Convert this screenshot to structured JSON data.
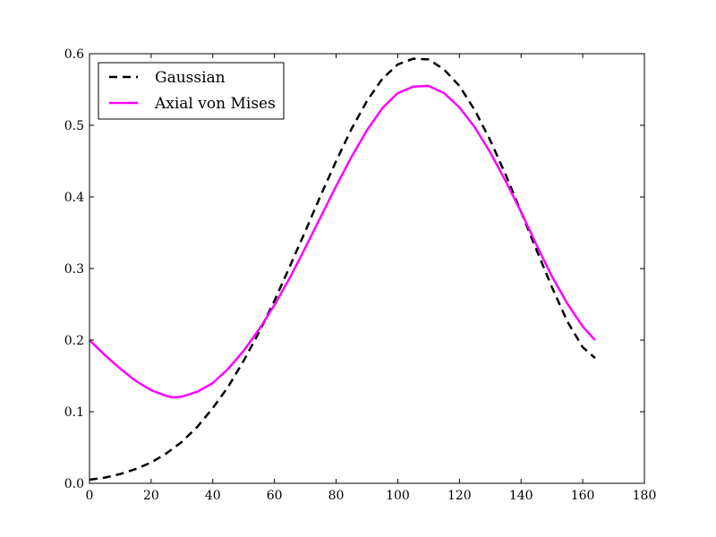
{
  "chart_data": {
    "type": "line",
    "title": "",
    "xlabel": "",
    "ylabel": "",
    "xlim": [
      0,
      180
    ],
    "ylim": [
      0.0,
      0.6
    ],
    "xticks": [
      0,
      20,
      40,
      60,
      80,
      100,
      120,
      140,
      160,
      180
    ],
    "xtick_labels": [
      "0",
      "20",
      "40",
      "60",
      "80",
      "100",
      "120",
      "140",
      "160",
      "180"
    ],
    "yticks": [
      0.0,
      0.1,
      0.2,
      0.3,
      0.4,
      0.5,
      0.6
    ],
    "ytick_labels": [
      "0.0",
      "0.1",
      "0.2",
      "0.3",
      "0.4",
      "0.5",
      "0.6"
    ],
    "grid": false,
    "legend_position": "top-left",
    "series": [
      {
        "name": "Gaussian",
        "color": "#000000",
        "line_style": "dashed",
        "x": [
          0,
          5,
          10,
          15,
          20,
          25,
          30,
          35,
          40,
          45,
          50,
          55,
          60,
          65,
          70,
          75,
          80,
          85,
          90,
          95,
          100,
          105,
          110,
          115,
          120,
          125,
          130,
          135,
          140,
          145,
          150,
          155,
          160,
          164
        ],
        "y": [
          0.005,
          0.008,
          0.013,
          0.02,
          0.029,
          0.042,
          0.058,
          0.079,
          0.105,
          0.135,
          0.171,
          0.211,
          0.255,
          0.303,
          0.352,
          0.402,
          0.45,
          0.495,
          0.534,
          0.565,
          0.585,
          0.593,
          0.592,
          0.578,
          0.555,
          0.521,
          0.479,
          0.431,
          0.379,
          0.326,
          0.274,
          0.226,
          0.19,
          0.175
        ]
      },
      {
        "name": "Axial von Mises",
        "color": "#ff00ff",
        "line_style": "solid",
        "x": [
          0,
          5,
          10,
          15,
          20,
          25,
          27,
          30,
          35,
          40,
          45,
          50,
          55,
          60,
          65,
          70,
          75,
          80,
          85,
          90,
          95,
          100,
          105,
          110,
          115,
          120,
          125,
          130,
          135,
          140,
          145,
          150,
          155,
          160,
          164
        ],
        "y": [
          0.2,
          0.179,
          0.16,
          0.143,
          0.13,
          0.122,
          0.12,
          0.121,
          0.128,
          0.14,
          0.16,
          0.185,
          0.215,
          0.249,
          0.287,
          0.329,
          0.372,
          0.415,
          0.456,
          0.493,
          0.524,
          0.545,
          0.554,
          0.555,
          0.545,
          0.525,
          0.497,
          0.462,
          0.422,
          0.379,
          0.333,
          0.289,
          0.251,
          0.219,
          0.2
        ]
      }
    ]
  }
}
